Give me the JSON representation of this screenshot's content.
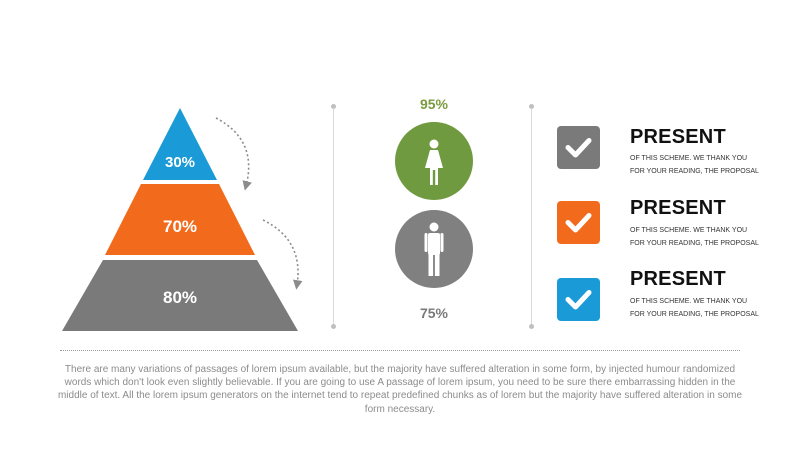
{
  "pyramid": {
    "levels": [
      {
        "label": "30%",
        "color": "#1a9ad6"
      },
      {
        "label": "70%",
        "color": "#f26b1d"
      },
      {
        "label": "80%",
        "color": "#7a7a7a"
      }
    ]
  },
  "gender": {
    "female": {
      "percent": "95%",
      "circle_color": "#709a3f",
      "text_color": "#7a9a3f",
      "icon": "female-icon"
    },
    "male": {
      "percent": "75%",
      "circle_color": "#808080",
      "text_color": "#7a7a7a",
      "icon": "male-icon"
    }
  },
  "list": {
    "items": [
      {
        "title": "PRESENT",
        "desc": "OF THIS SCHEME. WE THANK YOU FOR YOUR READING, THE PROPOSAL",
        "color": "#7a7a7a",
        "icon": "checkmark-icon"
      },
      {
        "title": "PRESENT",
        "desc": "OF THIS SCHEME. WE THANK YOU FOR YOUR READING, THE PROPOSAL",
        "color": "#f26b1d",
        "icon": "checkmark-icon"
      },
      {
        "title": "PRESENT",
        "desc": "OF THIS SCHEME. WE THANK YOU FOR YOUR READING, THE PROPOSAL",
        "color": "#1a9ad6",
        "icon": "checkmark-icon"
      }
    ]
  },
  "footer": {
    "text": "There are many variations of passages of lorem ipsum available, but the majority have suffered alteration in some form, by injected humour randomized words which don't look even slightly believable. If you are going to use A passage of lorem ipsum, you need to be sure there embarrassing hidden in the middle of text. All the lorem ipsum generators on the internet tend to repeat predefined chunks as of lorem but the majority have suffered alteration in some form  necessary."
  }
}
